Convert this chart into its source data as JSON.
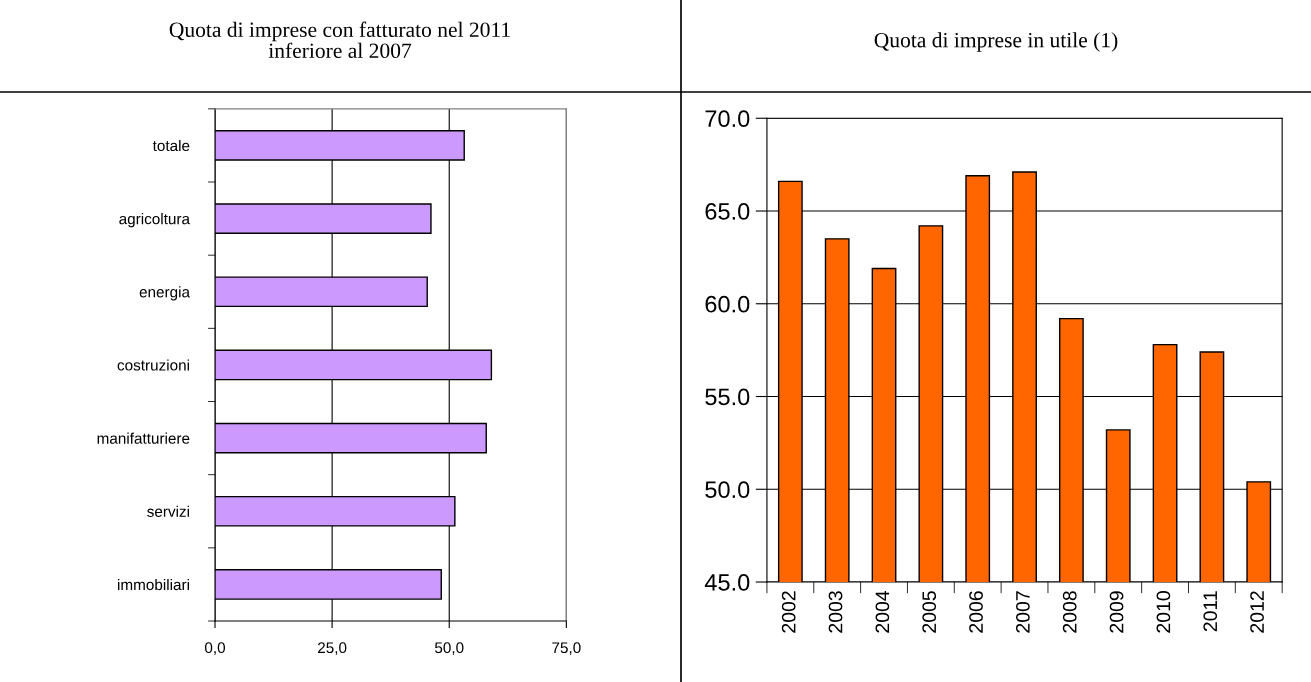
{
  "chart_data": [
    {
      "type": "bar",
      "orientation": "horizontal",
      "title": "Quota di imprese con fatturato nel 2011\ninferiore al 2007",
      "categories": [
        "totale",
        "agricoltura",
        "energia",
        "costruzioni",
        "manifatturiere",
        "servizi",
        "immobiliari"
      ],
      "values": [
        53.2,
        46.1,
        45.3,
        59.0,
        57.9,
        51.2,
        48.3
      ],
      "color": "#cc99ff",
      "xlim": [
        0,
        75
      ],
      "xticks": [
        {
          "value": 0,
          "label": "0,0"
        },
        {
          "value": 25,
          "label": "25,0"
        },
        {
          "value": 50,
          "label": "50,0"
        },
        {
          "value": 75,
          "label": "75,0"
        }
      ],
      "grid": "x"
    },
    {
      "type": "bar",
      "title": "Quota di imprese in utile (1)",
      "categories": [
        "2002",
        "2003",
        "2004",
        "2005",
        "2006",
        "2007",
        "2008",
        "2009",
        "2010",
        "2011",
        "2012"
      ],
      "values": [
        66.6,
        63.5,
        61.9,
        64.2,
        66.9,
        67.1,
        59.2,
        53.2,
        57.8,
        57.4,
        50.4
      ],
      "color": "#ff6600",
      "ylim": [
        45,
        70
      ],
      "yticks": [
        {
          "value": 45,
          "label": "45.0"
        },
        {
          "value": 50,
          "label": "50.0"
        },
        {
          "value": 55,
          "label": "55.0"
        },
        {
          "value": 60,
          "label": "60.0"
        },
        {
          "value": 65,
          "label": "65.0"
        },
        {
          "value": 70,
          "label": "70.0"
        }
      ],
      "grid": "y"
    }
  ]
}
